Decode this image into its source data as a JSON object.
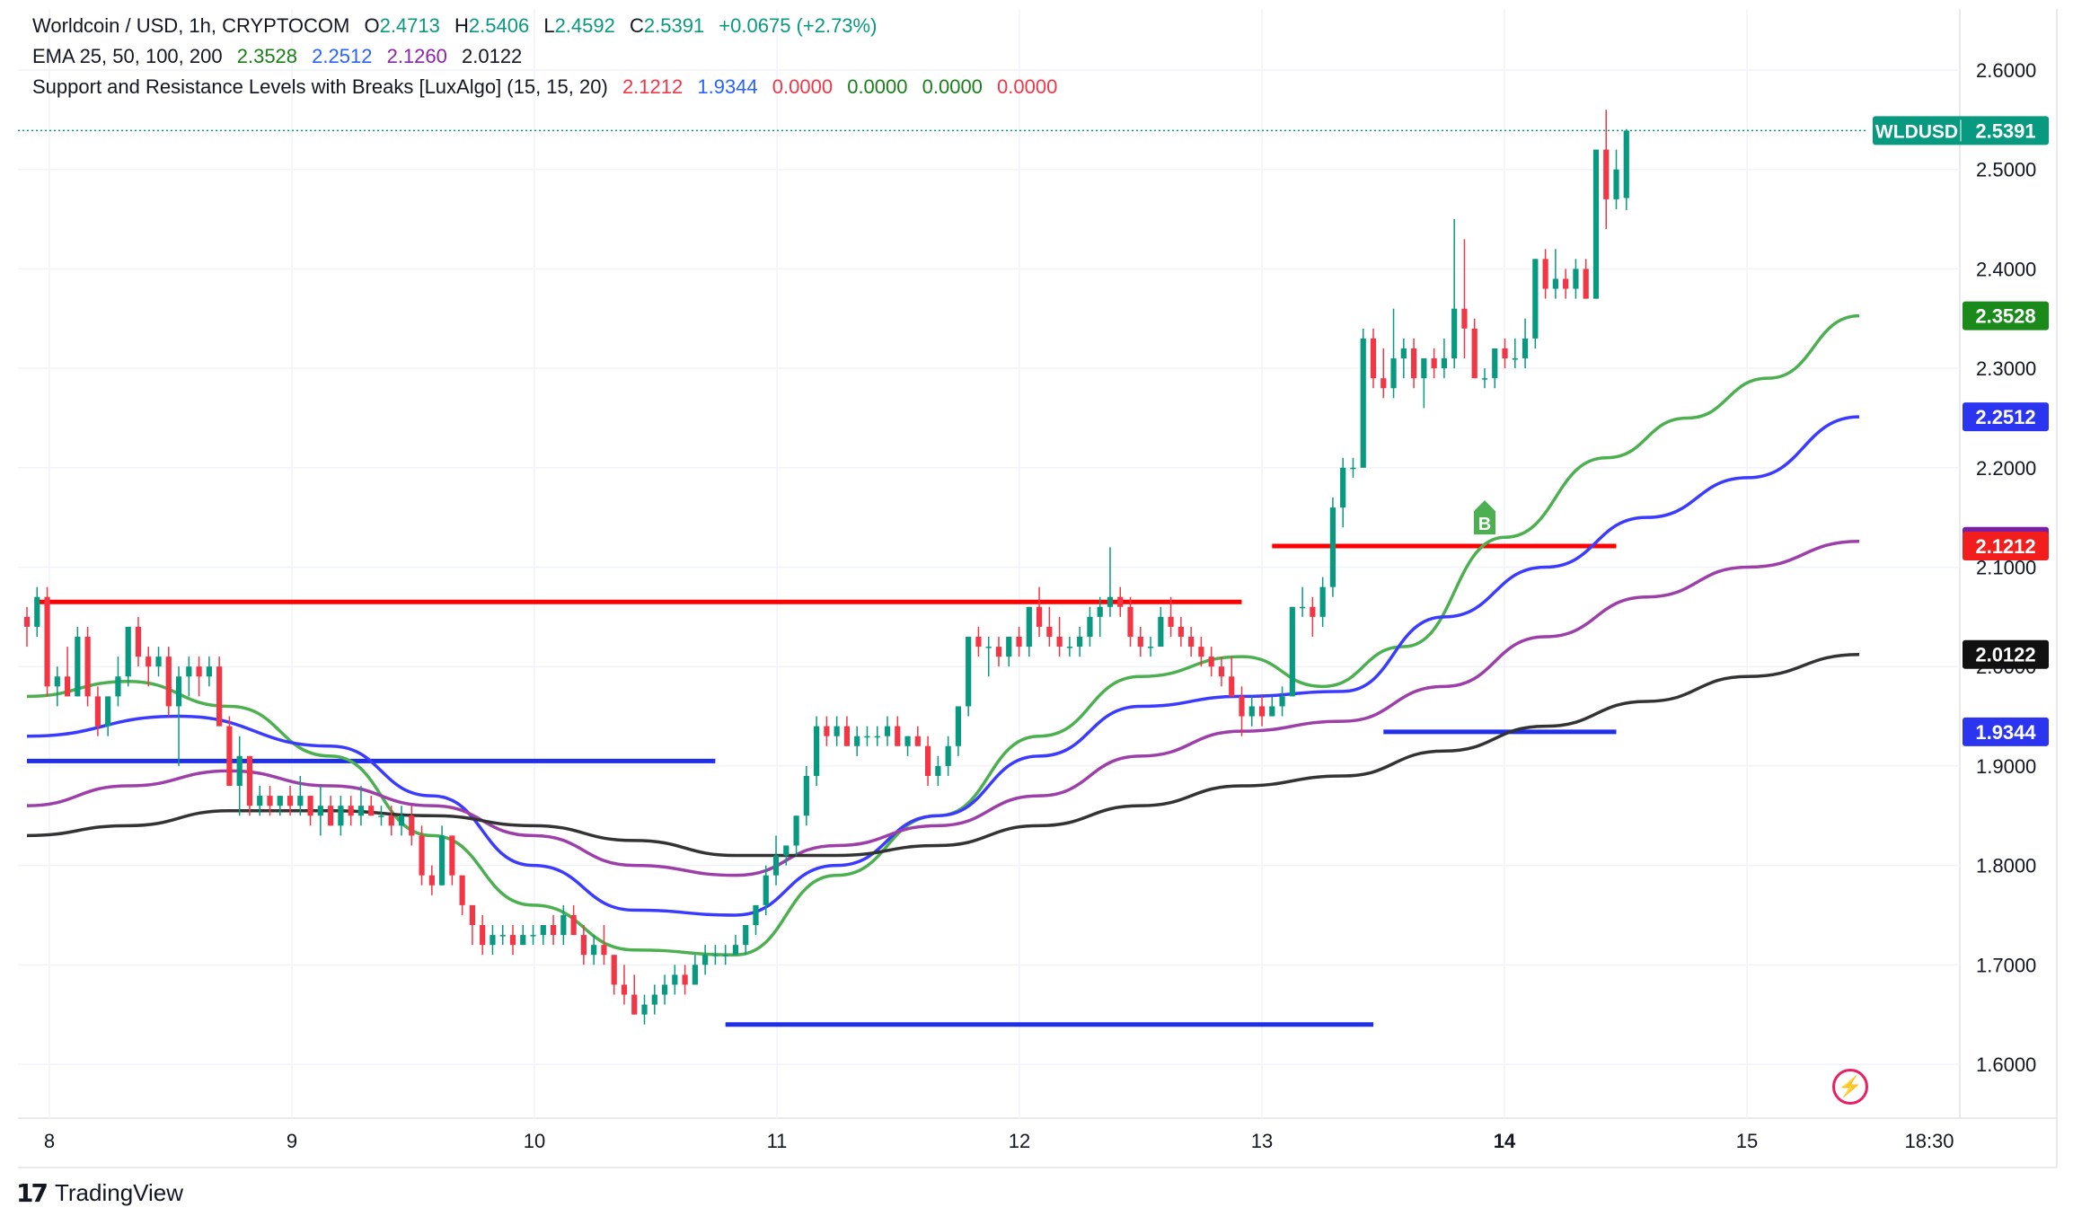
{
  "header": {
    "symbol_line": "Worldcoin / USD, 1h, CRYPTOCOM",
    "ohlc": [
      {
        "label": "O",
        "value": "2.4713"
      },
      {
        "label": "H",
        "value": "2.5406"
      },
      {
        "label": "L",
        "value": "2.4592"
      },
      {
        "label": "C",
        "value": "2.5391"
      }
    ],
    "change": "+0.0675 (+2.73%)",
    "ema_label": "EMA 25, 50, 100, 200",
    "ema_values": [
      "2.3528",
      "2.2512",
      "2.1260",
      "2.0122"
    ],
    "sr_label": "Support and Resistance Levels with Breaks [LuxAlgo] (15, 15, 20)",
    "sr_values": [
      "2.1212",
      "1.9344",
      "0.0000",
      "0.0000",
      "0.0000",
      "0.0000"
    ]
  },
  "colors": {
    "up": "#089981",
    "down": "#f23645",
    "ema25": "#4caf50",
    "ema50": "#3b3bff",
    "ema100": "#9c3fa8",
    "ema200": "#333333",
    "resistance": "#ff0000",
    "support": "#1f2ee8"
  },
  "price_tags": {
    "symbol": "WLDUSD",
    "last": "2.5391",
    "ema25": "2.3528",
    "ema50": "2.2512",
    "ema100": "2.1260",
    "resistance": "2.1212",
    "ema200": "2.0122",
    "support": "1.9344"
  },
  "branding": {
    "logo_text": "TradingView",
    "logo_mark": "17"
  },
  "break_marker_label": "B",
  "chart_data": {
    "type": "candlestick",
    "title": "Worldcoin / USD, 1h, CRYPTOCOM",
    "ylim": [
      1.53,
      2.66
    ],
    "y_ticks": [
      "1.6000",
      "1.7000",
      "1.8000",
      "1.9000",
      "2.0000",
      "2.1000",
      "2.2000",
      "2.3000",
      "2.4000",
      "2.5000",
      "2.6000"
    ],
    "x_ticks": [
      "8",
      "9",
      "10",
      "11",
      "12",
      "13",
      "14",
      "15",
      "18:30"
    ],
    "grid": true,
    "candles": [
      [
        2.05,
        2.06,
        2.02,
        2.04
      ],
      [
        2.04,
        2.08,
        2.03,
        2.07
      ],
      [
        2.07,
        2.08,
        1.97,
        1.98
      ],
      [
        1.98,
        2.0,
        1.96,
        1.99
      ],
      [
        1.99,
        2.02,
        1.97,
        1.97
      ],
      [
        1.97,
        2.04,
        1.97,
        2.03
      ],
      [
        2.03,
        2.04,
        1.96,
        1.97
      ],
      [
        1.97,
        1.98,
        1.93,
        1.94
      ],
      [
        1.94,
        1.97,
        1.93,
        1.97
      ],
      [
        1.97,
        2.01,
        1.96,
        1.99
      ],
      [
        1.99,
        2.04,
        1.98,
        2.04
      ],
      [
        2.04,
        2.05,
        2.0,
        2.01
      ],
      [
        2.01,
        2.02,
        1.98,
        2.0
      ],
      [
        2.0,
        2.02,
        1.99,
        2.01
      ],
      [
        2.01,
        2.02,
        1.95,
        1.96
      ],
      [
        1.96,
        2.0,
        1.9,
        1.99
      ],
      [
        1.99,
        2.01,
        1.97,
        2.0
      ],
      [
        2.0,
        2.01,
        1.97,
        1.99
      ],
      [
        1.99,
        2.01,
        1.98,
        2.0
      ],
      [
        2.0,
        2.01,
        1.94,
        1.94
      ],
      [
        1.94,
        1.95,
        1.88,
        1.88
      ],
      [
        1.88,
        1.93,
        1.85,
        1.91
      ],
      [
        1.91,
        1.91,
        1.85,
        1.86
      ],
      [
        1.86,
        1.88,
        1.85,
        1.87
      ],
      [
        1.87,
        1.88,
        1.85,
        1.86
      ],
      [
        1.86,
        1.87,
        1.85,
        1.87
      ],
      [
        1.87,
        1.88,
        1.85,
        1.86
      ],
      [
        1.86,
        1.89,
        1.85,
        1.87
      ],
      [
        1.87,
        1.87,
        1.84,
        1.85
      ],
      [
        1.85,
        1.88,
        1.83,
        1.86
      ],
      [
        1.86,
        1.87,
        1.84,
        1.84
      ],
      [
        1.84,
        1.87,
        1.83,
        1.86
      ],
      [
        1.86,
        1.87,
        1.84,
        1.85
      ],
      [
        1.85,
        1.88,
        1.84,
        1.86
      ],
      [
        1.86,
        1.87,
        1.85,
        1.85
      ],
      [
        1.85,
        1.86,
        1.84,
        1.85
      ],
      [
        1.85,
        1.86,
        1.83,
        1.84
      ],
      [
        1.84,
        1.86,
        1.83,
        1.85
      ],
      [
        1.85,
        1.86,
        1.82,
        1.83
      ],
      [
        1.83,
        1.84,
        1.78,
        1.79
      ],
      [
        1.79,
        1.8,
        1.77,
        1.78
      ],
      [
        1.78,
        1.84,
        1.78,
        1.83
      ],
      [
        1.83,
        1.83,
        1.78,
        1.79
      ],
      [
        1.79,
        1.79,
        1.75,
        1.76
      ],
      [
        1.76,
        1.76,
        1.72,
        1.74
      ],
      [
        1.74,
        1.75,
        1.71,
        1.72
      ],
      [
        1.72,
        1.74,
        1.71,
        1.73
      ],
      [
        1.73,
        1.74,
        1.72,
        1.73
      ],
      [
        1.73,
        1.74,
        1.71,
        1.72
      ],
      [
        1.72,
        1.74,
        1.72,
        1.73
      ],
      [
        1.73,
        1.74,
        1.72,
        1.73
      ],
      [
        1.73,
        1.74,
        1.72,
        1.74
      ],
      [
        1.74,
        1.75,
        1.72,
        1.73
      ],
      [
        1.73,
        1.76,
        1.72,
        1.75
      ],
      [
        1.75,
        1.76,
        1.73,
        1.73
      ],
      [
        1.73,
        1.74,
        1.7,
        1.71
      ],
      [
        1.71,
        1.73,
        1.7,
        1.72
      ],
      [
        1.72,
        1.74,
        1.7,
        1.71
      ],
      [
        1.71,
        1.71,
        1.67,
        1.68
      ],
      [
        1.68,
        1.7,
        1.66,
        1.67
      ],
      [
        1.67,
        1.69,
        1.65,
        1.65
      ],
      [
        1.65,
        1.67,
        1.64,
        1.66
      ],
      [
        1.66,
        1.68,
        1.65,
        1.67
      ],
      [
        1.67,
        1.69,
        1.66,
        1.68
      ],
      [
        1.68,
        1.7,
        1.67,
        1.69
      ],
      [
        1.69,
        1.7,
        1.67,
        1.68
      ],
      [
        1.68,
        1.71,
        1.68,
        1.7
      ],
      [
        1.7,
        1.72,
        1.69,
        1.71
      ],
      [
        1.71,
        1.72,
        1.7,
        1.71
      ],
      [
        1.71,
        1.72,
        1.7,
        1.71
      ],
      [
        1.71,
        1.73,
        1.71,
        1.72
      ],
      [
        1.72,
        1.74,
        1.71,
        1.74
      ],
      [
        1.74,
        1.76,
        1.73,
        1.76
      ],
      [
        1.76,
        1.8,
        1.75,
        1.79
      ],
      [
        1.79,
        1.83,
        1.78,
        1.81
      ],
      [
        1.81,
        1.82,
        1.8,
        1.82
      ],
      [
        1.82,
        1.85,
        1.81,
        1.85
      ],
      [
        1.85,
        1.9,
        1.84,
        1.89
      ],
      [
        1.89,
        1.95,
        1.88,
        1.94
      ],
      [
        1.94,
        1.95,
        1.92,
        1.93
      ],
      [
        1.93,
        1.95,
        1.92,
        1.94
      ],
      [
        1.94,
        1.95,
        1.92,
        1.92
      ],
      [
        1.92,
        1.94,
        1.91,
        1.93
      ],
      [
        1.93,
        1.94,
        1.92,
        1.93
      ],
      [
        1.93,
        1.94,
        1.92,
        1.93
      ],
      [
        1.93,
        1.95,
        1.92,
        1.94
      ],
      [
        1.94,
        1.95,
        1.92,
        1.92
      ],
      [
        1.92,
        1.93,
        1.91,
        1.93
      ],
      [
        1.93,
        1.94,
        1.92,
        1.92
      ],
      [
        1.92,
        1.93,
        1.88,
        1.89
      ],
      [
        1.89,
        1.91,
        1.88,
        1.9
      ],
      [
        1.9,
        1.93,
        1.89,
        1.92
      ],
      [
        1.92,
        1.96,
        1.91,
        1.96
      ],
      [
        1.96,
        2.03,
        1.95,
        2.03
      ],
      [
        2.03,
        2.04,
        2.01,
        2.02
      ],
      [
        2.02,
        2.03,
        1.99,
        2.02
      ],
      [
        2.02,
        2.03,
        2.0,
        2.01
      ],
      [
        2.01,
        2.03,
        2.0,
        2.03
      ],
      [
        2.03,
        2.04,
        2.01,
        2.02
      ],
      [
        2.02,
        2.06,
        2.01,
        2.06
      ],
      [
        2.06,
        2.08,
        2.03,
        2.04
      ],
      [
        2.04,
        2.06,
        2.02,
        2.03
      ],
      [
        2.03,
        2.05,
        2.01,
        2.02
      ],
      [
        2.02,
        2.03,
        2.01,
        2.02
      ],
      [
        2.02,
        2.04,
        2.01,
        2.03
      ],
      [
        2.03,
        2.06,
        2.02,
        2.05
      ],
      [
        2.05,
        2.07,
        2.03,
        2.06
      ],
      [
        2.06,
        2.12,
        2.05,
        2.07
      ],
      [
        2.07,
        2.08,
        2.05,
        2.06
      ],
      [
        2.06,
        2.07,
        2.02,
        2.03
      ],
      [
        2.03,
        2.04,
        2.01,
        2.02
      ],
      [
        2.02,
        2.03,
        2.01,
        2.02
      ],
      [
        2.02,
        2.06,
        2.02,
        2.05
      ],
      [
        2.05,
        2.07,
        2.03,
        2.04
      ],
      [
        2.04,
        2.05,
        2.02,
        2.03
      ],
      [
        2.03,
        2.04,
        2.01,
        2.02
      ],
      [
        2.02,
        2.03,
        2.0,
        2.01
      ],
      [
        2.01,
        2.02,
        1.99,
        2.0
      ],
      [
        2.0,
        2.01,
        1.98,
        1.99
      ],
      [
        1.99,
        2.01,
        1.97,
        1.97
      ],
      [
        1.97,
        1.98,
        1.93,
        1.95
      ],
      [
        1.95,
        1.97,
        1.94,
        1.96
      ],
      [
        1.96,
        1.97,
        1.94,
        1.95
      ],
      [
        1.95,
        1.97,
        1.95,
        1.96
      ],
      [
        1.96,
        1.98,
        1.95,
        1.97
      ],
      [
        1.97,
        2.06,
        1.97,
        2.06
      ],
      [
        2.06,
        2.08,
        2.05,
        2.06
      ],
      [
        2.06,
        2.07,
        2.03,
        2.05
      ],
      [
        2.05,
        2.09,
        2.04,
        2.08
      ],
      [
        2.08,
        2.17,
        2.07,
        2.16
      ],
      [
        2.16,
        2.21,
        2.14,
        2.2
      ],
      [
        2.2,
        2.21,
        2.19,
        2.2
      ],
      [
        2.2,
        2.34,
        2.2,
        2.33
      ],
      [
        2.33,
        2.34,
        2.28,
        2.29
      ],
      [
        2.29,
        2.32,
        2.27,
        2.28
      ],
      [
        2.28,
        2.36,
        2.27,
        2.31
      ],
      [
        2.31,
        2.33,
        2.29,
        2.32
      ],
      [
        2.32,
        2.33,
        2.28,
        2.29
      ],
      [
        2.29,
        2.31,
        2.26,
        2.31
      ],
      [
        2.31,
        2.32,
        2.29,
        2.3
      ],
      [
        2.3,
        2.33,
        2.29,
        2.31
      ],
      [
        2.31,
        2.45,
        2.3,
        2.36
      ],
      [
        2.36,
        2.43,
        2.31,
        2.34
      ],
      [
        2.34,
        2.35,
        2.29,
        2.29
      ],
      [
        2.29,
        2.3,
        2.28,
        2.29
      ],
      [
        2.29,
        2.32,
        2.28,
        2.32
      ],
      [
        2.32,
        2.33,
        2.3,
        2.31
      ],
      [
        2.31,
        2.33,
        2.3,
        2.31
      ],
      [
        2.31,
        2.35,
        2.3,
        2.33
      ],
      [
        2.33,
        2.41,
        2.32,
        2.41
      ],
      [
        2.41,
        2.42,
        2.37,
        2.38
      ],
      [
        2.38,
        2.42,
        2.37,
        2.39
      ],
      [
        2.39,
        2.4,
        2.37,
        2.38
      ],
      [
        2.38,
        2.41,
        2.37,
        2.4
      ],
      [
        2.4,
        2.41,
        2.37,
        2.37
      ],
      [
        2.37,
        2.52,
        2.37,
        2.52
      ],
      [
        2.52,
        2.56,
        2.44,
        2.47
      ],
      [
        2.47,
        2.52,
        2.46,
        2.5
      ],
      [
        2.4713,
        2.5406,
        2.4592,
        2.5391
      ]
    ],
    "ema_series": [
      {
        "name": "EMA 25",
        "value": 2.3528,
        "points": [
          [
            0,
            1.97
          ],
          [
            10,
            1.985
          ],
          [
            20,
            1.96
          ],
          [
            30,
            1.91
          ],
          [
            40,
            1.83
          ],
          [
            50,
            1.76
          ],
          [
            60,
            1.715
          ],
          [
            70,
            1.71
          ],
          [
            80,
            1.79
          ],
          [
            90,
            1.85
          ],
          [
            100,
            1.93
          ],
          [
            110,
            1.99
          ],
          [
            120,
            2.01
          ],
          [
            128,
            1.98
          ],
          [
            136,
            2.02
          ],
          [
            146,
            2.13
          ],
          [
            156,
            2.21
          ],
          [
            164,
            2.25
          ],
          [
            172,
            2.29
          ],
          [
            181,
            2.3528
          ]
        ]
      },
      {
        "name": "EMA 50",
        "value": 2.2512,
        "points": [
          [
            0,
            1.93
          ],
          [
            15,
            1.95
          ],
          [
            30,
            1.92
          ],
          [
            40,
            1.87
          ],
          [
            50,
            1.8
          ],
          [
            60,
            1.755
          ],
          [
            70,
            1.75
          ],
          [
            80,
            1.8
          ],
          [
            90,
            1.85
          ],
          [
            100,
            1.91
          ],
          [
            110,
            1.96
          ],
          [
            120,
            1.97
          ],
          [
            130,
            1.975
          ],
          [
            140,
            2.05
          ],
          [
            150,
            2.1
          ],
          [
            160,
            2.15
          ],
          [
            170,
            2.19
          ],
          [
            181,
            2.2512
          ]
        ]
      },
      {
        "name": "EMA 100",
        "value": 2.126,
        "points": [
          [
            0,
            1.86
          ],
          [
            10,
            1.88
          ],
          [
            20,
            1.895
          ],
          [
            30,
            1.88
          ],
          [
            40,
            1.86
          ],
          [
            50,
            1.83
          ],
          [
            60,
            1.8
          ],
          [
            70,
            1.79
          ],
          [
            80,
            1.82
          ],
          [
            90,
            1.84
          ],
          [
            100,
            1.87
          ],
          [
            110,
            1.91
          ],
          [
            120,
            1.935
          ],
          [
            130,
            1.945
          ],
          [
            140,
            1.98
          ],
          [
            150,
            2.03
          ],
          [
            160,
            2.07
          ],
          [
            170,
            2.1
          ],
          [
            181,
            2.126
          ]
        ]
      },
      {
        "name": "EMA 200",
        "value": 2.0122,
        "points": [
          [
            0,
            1.83
          ],
          [
            10,
            1.84
          ],
          [
            20,
            1.855
          ],
          [
            30,
            1.855
          ],
          [
            40,
            1.85
          ],
          [
            50,
            1.84
          ],
          [
            60,
            1.825
          ],
          [
            70,
            1.81
          ],
          [
            80,
            1.81
          ],
          [
            90,
            1.82
          ],
          [
            100,
            1.84
          ],
          [
            110,
            1.86
          ],
          [
            120,
            1.88
          ],
          [
            130,
            1.89
          ],
          [
            140,
            1.915
          ],
          [
            150,
            1.94
          ],
          [
            160,
            1.965
          ],
          [
            170,
            1.99
          ],
          [
            181,
            2.0122
          ]
        ]
      }
    ],
    "levels": [
      {
        "kind": "resistance",
        "price": 2.065,
        "from": 1,
        "to": 120
      },
      {
        "kind": "resistance",
        "price": 2.1212,
        "from": 123,
        "to": 157
      },
      {
        "kind": "support",
        "price": 1.905,
        "from": 0,
        "to": 68
      },
      {
        "kind": "support",
        "price": 1.64,
        "from": 69,
        "to": 133
      },
      {
        "kind": "support",
        "price": 1.9344,
        "from": 134,
        "to": 157
      }
    ],
    "break_markers": [
      {
        "label": "B",
        "index": 144,
        "price": 2.16
      }
    ]
  }
}
